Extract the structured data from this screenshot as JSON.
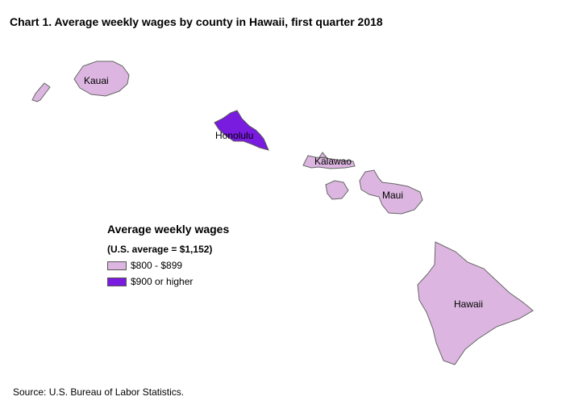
{
  "title": "Chart 1. Average weekly wages by county in Hawaii, first quarter 2018",
  "legend": {
    "title": "Average weekly wages",
    "subtitle": "(U.S. average = $1,152)",
    "items": [
      {
        "label": "$800 - $899",
        "color": "#dcb6e0"
      },
      {
        "label": "$900 or higher",
        "color": "#7a1be0"
      }
    ]
  },
  "counties": {
    "kauai": {
      "name": "Kauai",
      "color": "#dcb6e0"
    },
    "honolulu": {
      "name": "Honolulu",
      "color": "#7a1be0"
    },
    "kalawao": {
      "name": "Kalawao",
      "color": "#dcb6e0"
    },
    "maui": {
      "name": "Maui",
      "color": "#dcb6e0"
    },
    "hawaii": {
      "name": "Hawaii",
      "color": "#dcb6e0"
    }
  },
  "source": "Source: U.S. Bureau of Labor Statistics."
}
